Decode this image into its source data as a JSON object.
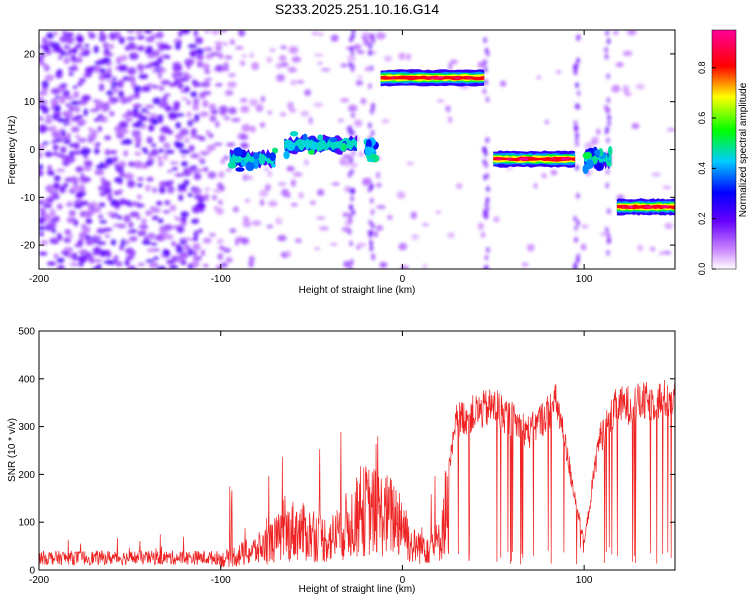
{
  "title": "S233.2025.251.10.16.G14",
  "chart_data": [
    {
      "type": "heatmap",
      "xlabel": "Height of straight line (km)",
      "ylabel": "Frequency (Hz)",
      "xlim": [
        -200,
        150
      ],
      "ylim": [
        -25,
        25
      ],
      "xticks": [
        -200,
        -100,
        0,
        100
      ],
      "yticks": [
        -20,
        -10,
        0,
        10,
        20
      ],
      "colorbar": {
        "label": "Normalized spectral amplitude",
        "range": [
          0.0,
          0.95
        ],
        "ticks": [
          0.0,
          0.2,
          0.4,
          0.6,
          0.8
        ]
      },
      "ridge_segments": [
        {
          "x0": -95,
          "x1": -70,
          "y": -2,
          "amplitude": 0.45
        },
        {
          "x0": -65,
          "x1": -25,
          "y": 1,
          "amplitude": 0.4
        },
        {
          "x0": -20,
          "x1": -15,
          "y": 0,
          "amplitude": 0.45
        },
        {
          "x0": -12,
          "x1": 45,
          "y": 15,
          "amplitude": 0.95
        },
        {
          "x0": 50,
          "x1": 95,
          "y": -2,
          "amplitude": 0.95
        },
        {
          "x0": 100,
          "x1": 115,
          "y": -2,
          "amplitude": 0.6
        },
        {
          "x0": 118,
          "x1": 150,
          "y": -12,
          "amplitude": 0.95
        }
      ]
    },
    {
      "type": "line",
      "xlabel": "Height of straight line (km)",
      "ylabel": "SNR (10 * v/v)",
      "xlim": [
        -200,
        150
      ],
      "ylim": [
        0,
        500
      ],
      "xticks": [
        -200,
        -100,
        0,
        100
      ],
      "yticks": [
        0,
        100,
        200,
        300,
        400,
        500
      ],
      "color": "#ee2222",
      "envelope": [
        {
          "x": -200,
          "y": 30
        },
        {
          "x": -100,
          "y": 30
        },
        {
          "x": -80,
          "y": 60
        },
        {
          "x": -60,
          "y": 120
        },
        {
          "x": -40,
          "y": 90
        },
        {
          "x": -20,
          "y": 180
        },
        {
          "x": 0,
          "y": 150
        },
        {
          "x": 5,
          "y": 70
        },
        {
          "x": 20,
          "y": 80
        },
        {
          "x": 30,
          "y": 350
        },
        {
          "x": 50,
          "y": 380
        },
        {
          "x": 70,
          "y": 320
        },
        {
          "x": 85,
          "y": 390
        },
        {
          "x": 100,
          "y": 60
        },
        {
          "x": 108,
          "y": 300
        },
        {
          "x": 118,
          "y": 380
        },
        {
          "x": 150,
          "y": 400
        }
      ]
    }
  ]
}
